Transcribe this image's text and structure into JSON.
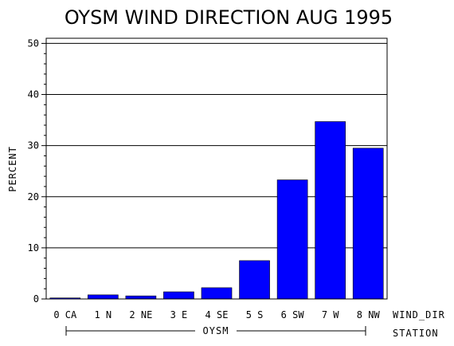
{
  "chart_data": {
    "type": "bar",
    "title": "OYSM WIND DIRECTION AUG 1995",
    "ylabel": "PERCENT",
    "xlabel": "WIND_DIR",
    "group_axis_label": "STATION",
    "group_name": "OYSM",
    "categories": [
      "0 CA",
      "1 N",
      "2 NE",
      "3 E",
      "4 SE",
      "5 S",
      "6 SW",
      "7 W",
      "8 NW"
    ],
    "values": [
      0.2,
      0.8,
      0.6,
      1.4,
      2.2,
      7.5,
      23.3,
      34.7,
      29.5
    ],
    "ylim": [
      0,
      51
    ],
    "yticks": [
      0,
      10,
      20,
      30,
      40,
      50
    ],
    "grid": true,
    "bar_color": "#0000ff"
  }
}
